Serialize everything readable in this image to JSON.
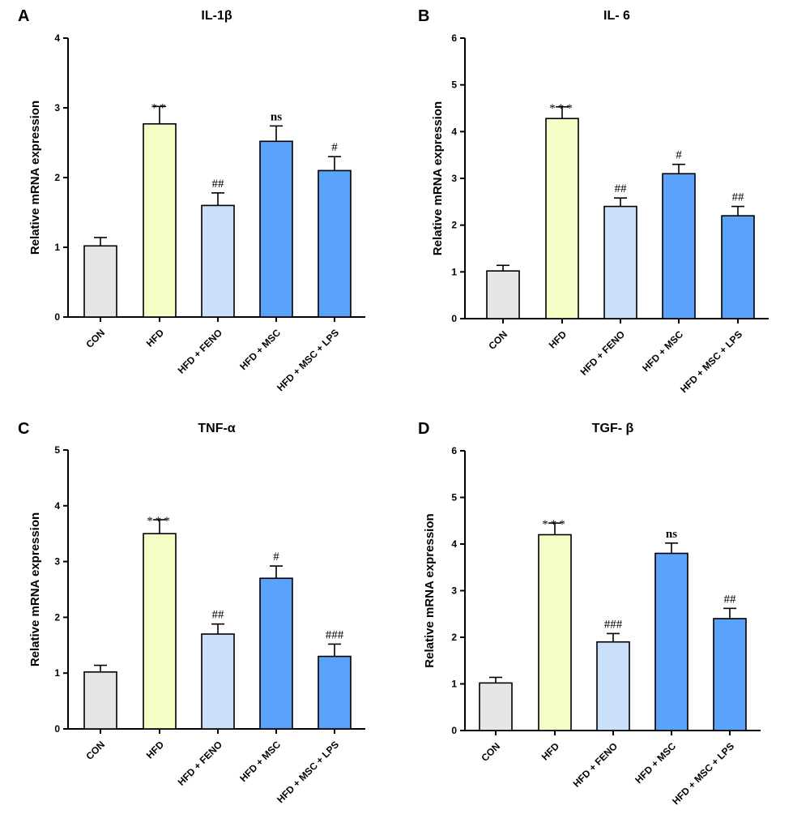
{
  "figure": {
    "panels": [
      "A",
      "B",
      "C",
      "D"
    ]
  },
  "chart_data": [
    {
      "type": "bar",
      "panel": "A",
      "title": "IL-1β",
      "ylabel": "Relative mRNA expression",
      "xlabel": "",
      "ylim": [
        0,
        4
      ],
      "yticks": [
        0,
        1,
        2,
        3,
        4
      ],
      "categories": [
        "CON",
        "HFD",
        "HFD + FENO",
        "HFD + MSC",
        "HFD + MSC + LPS"
      ],
      "values": [
        1.02,
        2.77,
        1.6,
        2.52,
        2.1
      ],
      "errors": [
        0.12,
        0.25,
        0.18,
        0.22,
        0.2
      ],
      "annotations": [
        "",
        "**",
        "##",
        "ns",
        "#"
      ],
      "colors": [
        "#e6e6e6",
        "#f3fdc6",
        "#c9dffa",
        "#5ba2fb",
        "#5ba2fb"
      ],
      "grid": false
    },
    {
      "type": "bar",
      "panel": "B",
      "title": "IL- 6",
      "ylabel": "Relative mRNA expression",
      "xlabel": "",
      "ylim": [
        0,
        6
      ],
      "yticks": [
        0,
        1,
        2,
        3,
        4,
        5,
        6
      ],
      "categories": [
        "CON",
        "HFD",
        "HFD + FENO",
        "HFD + MSC",
        "HFD + MSC + LPS"
      ],
      "values": [
        1.02,
        4.28,
        2.4,
        3.1,
        2.2
      ],
      "errors": [
        0.12,
        0.25,
        0.18,
        0.2,
        0.2
      ],
      "annotations": [
        "",
        "***",
        "##",
        "#",
        "##"
      ],
      "colors": [
        "#e6e6e6",
        "#f3fdc6",
        "#c9dffa",
        "#5ba2fb",
        "#5ba2fb"
      ],
      "grid": false
    },
    {
      "type": "bar",
      "panel": "C",
      "title": "TNF-α",
      "ylabel": "Relative mRNA expression",
      "xlabel": "",
      "ylim": [
        0,
        5
      ],
      "yticks": [
        0,
        1,
        2,
        3,
        4,
        5
      ],
      "categories": [
        "CON",
        "HFD",
        "HFD + FENO",
        "HFD + MSC",
        "HFD + MSC + LPS"
      ],
      "values": [
        1.02,
        3.5,
        1.7,
        2.7,
        1.3
      ],
      "errors": [
        0.12,
        0.25,
        0.18,
        0.22,
        0.22
      ],
      "annotations": [
        "",
        "***",
        "##",
        "#",
        "###"
      ],
      "colors": [
        "#e6e6e6",
        "#f3fdc6",
        "#c9dffa",
        "#5ba2fb",
        "#5ba2fb"
      ],
      "grid": false
    },
    {
      "type": "bar",
      "panel": "D",
      "title": "TGF- β",
      "ylabel": "Relative mRNA expression",
      "xlabel": "",
      "ylim": [
        0,
        6
      ],
      "yticks": [
        0,
        1,
        2,
        3,
        4,
        5,
        6
      ],
      "categories": [
        "CON",
        "HFD",
        "HFD + FENO",
        "HFD + MSC",
        "HFD + MSC + LPS"
      ],
      "values": [
        1.02,
        4.2,
        1.9,
        3.8,
        2.4
      ],
      "errors": [
        0.12,
        0.25,
        0.18,
        0.22,
        0.22
      ],
      "annotations": [
        "",
        "***",
        "###",
        "ns",
        "##"
      ],
      "colors": [
        "#e6e6e6",
        "#f3fdc6",
        "#c9dffa",
        "#5ba2fb",
        "#5ba2fb"
      ],
      "grid": false
    }
  ]
}
